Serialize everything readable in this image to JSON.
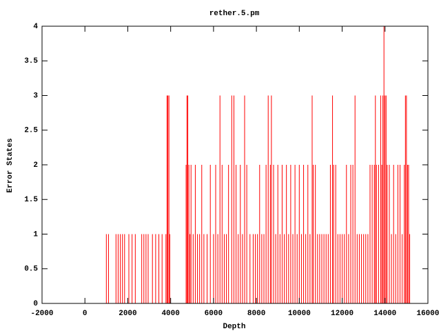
{
  "chart_data": {
    "type": "impulse",
    "title": "rether.5.pm",
    "x_label": "Depth",
    "y_label": "Error States",
    "color": "#ff0000",
    "xlim": [
      -2000,
      16000
    ],
    "xticks": [
      -2000,
      0,
      2000,
      4000,
      6000,
      8000,
      10000,
      12000,
      14000,
      16000
    ],
    "ylim": [
      0,
      4
    ],
    "yticks": [
      0,
      0.5,
      1,
      1.5,
      2,
      2.5,
      3,
      3.5,
      4
    ],
    "x": [
      1000,
      1100,
      1450,
      1550,
      1650,
      1750,
      1850,
      2050,
      2200,
      2350,
      2650,
      2750,
      2850,
      2950,
      3150,
      3300,
      3450,
      3600,
      3780,
      3830,
      3870,
      3920,
      3960,
      4720,
      4760,
      4800,
      4850,
      4900,
      4950,
      5050,
      5150,
      5250,
      5350,
      5450,
      5550,
      5700,
      5850,
      6000,
      6100,
      6200,
      6300,
      6400,
      6500,
      6600,
      6700,
      6850,
      6950,
      7050,
      7150,
      7250,
      7350,
      7450,
      7550,
      7700,
      7850,
      7950,
      8050,
      8150,
      8250,
      8350,
      8450,
      8550,
      8650,
      8700,
      8800,
      8900,
      9000,
      9100,
      9200,
      9300,
      9400,
      9500,
      9600,
      9700,
      9800,
      9900,
      10000,
      10100,
      10200,
      10300,
      10400,
      10500,
      10600,
      10650,
      10750,
      10850,
      10950,
      11050,
      11150,
      11250,
      11350,
      11450,
      11550,
      11600,
      11700,
      11800,
      11900,
      12000,
      12100,
      12200,
      12300,
      12400,
      12500,
      12600,
      12700,
      12800,
      12900,
      13000,
      13100,
      13200,
      13300,
      13400,
      13500,
      13550,
      13600,
      13700,
      13800,
      13850,
      13900,
      13950,
      14000,
      14050,
      14100,
      14200,
      14300,
      14400,
      14500,
      14600,
      14700,
      14800,
      14900,
      14950,
      15000,
      15050,
      15100,
      15150
    ],
    "values": [
      1,
      1,
      1,
      1,
      1,
      1,
      1,
      1,
      1,
      1,
      1,
      1,
      1,
      1,
      1,
      1,
      1,
      1,
      1,
      3,
      3,
      3,
      1,
      2,
      3,
      3,
      2,
      1,
      2,
      1,
      2,
      1,
      1,
      2,
      1,
      1,
      2,
      1,
      2,
      1,
      3,
      2,
      1,
      1,
      2,
      3,
      3,
      2,
      1,
      2,
      1,
      3,
      2,
      1,
      1,
      1,
      1,
      2,
      1,
      1,
      2,
      3,
      2,
      3,
      2,
      1,
      2,
      1,
      2,
      1,
      2,
      1,
      2,
      1,
      2,
      1,
      2,
      1,
      2,
      1,
      2,
      1,
      3,
      2,
      2,
      1,
      1,
      1,
      1,
      1,
      1,
      2,
      3,
      2,
      2,
      1,
      1,
      1,
      1,
      2,
      1,
      2,
      2,
      3,
      1,
      1,
      1,
      1,
      1,
      1,
      2,
      2,
      2,
      3,
      2,
      2,
      3,
      2,
      3,
      4,
      3,
      3,
      2,
      2,
      1,
      2,
      1,
      2,
      2,
      1,
      2,
      3,
      3,
      2,
      2,
      1
    ]
  }
}
